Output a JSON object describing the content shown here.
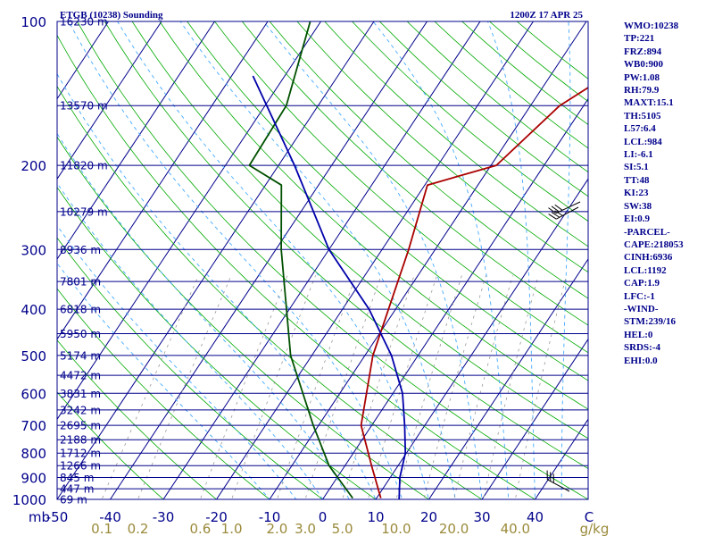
{
  "chart_data": {
    "type": "skew-t-log-p",
    "title": "ETGB (10238) Sounding",
    "time": "1200Z 17 APR 25",
    "pressure_range": [
      100,
      1000
    ],
    "skew_x_range": [
      -50,
      50
    ],
    "y_tick_labels": [
      "100",
      "200",
      "300",
      "400",
      "500",
      "600",
      "700",
      "800",
      "900",
      "1000"
    ],
    "x_tick_labels": [
      "mb",
      "-50",
      "-40",
      "-30",
      "-20",
      "-10",
      "0",
      "10",
      "20",
      "30",
      "40",
      "C"
    ],
    "x_tick_values": [
      -50,
      -40,
      -30,
      -20,
      -10,
      0,
      10,
      20,
      30,
      40
    ],
    "mixing_ratio_labels": [
      "0.1",
      "0.2",
      "0.6",
      "1.0",
      "2.0",
      "3.0",
      "5.0",
      "10.0",
      "20.0",
      "40.0",
      "g/kg"
    ],
    "mixing_ratio_values": [
      0.1,
      0.2,
      0.6,
      1.0,
      2.0,
      3.0,
      5.0,
      10.0,
      20.0,
      40.0
    ],
    "height_levels": [
      {
        "p": 100,
        "label": "16230 m"
      },
      {
        "p": 150,
        "label": "13570 m"
      },
      {
        "p": 200,
        "label": "11820 m"
      },
      {
        "p": 250,
        "label": "10279 m"
      },
      {
        "p": 300,
        "label": "8936 m"
      },
      {
        "p": 350,
        "label": "7801 m"
      },
      {
        "p": 400,
        "label": "6818 m"
      },
      {
        "p": 450,
        "label": "5950 m"
      },
      {
        "p": 500,
        "label": "5174 m"
      },
      {
        "p": 550,
        "label": "4472 m"
      },
      {
        "p": 600,
        "label": "3831 m"
      },
      {
        "p": 650,
        "label": "3242 m"
      },
      {
        "p": 700,
        "label": "2695 m"
      },
      {
        "p": 750,
        "label": "2188 m"
      },
      {
        "p": 800,
        "label": "1712 m"
      },
      {
        "p": 850,
        "label": "1266 m"
      },
      {
        "p": 900,
        "label": "845 m"
      },
      {
        "p": 950,
        "label": "447 m"
      },
      {
        "p": 1000,
        "label": "69 m"
      }
    ],
    "series": [
      {
        "key": "temperature",
        "color": "#aa0000",
        "points": [
          [
            994,
            10.8
          ],
          [
            850,
            5
          ],
          [
            700,
            -2
          ],
          [
            500,
            -8.5
          ],
          [
            300,
            -15
          ],
          [
            220,
            -19.5
          ],
          [
            200,
            -9
          ],
          [
            150,
            -4.5
          ],
          [
            100,
            10
          ]
        ]
      },
      {
        "key": "dewpoint",
        "color": "#005000",
        "points": [
          [
            994,
            5.5
          ],
          [
            850,
            -3
          ],
          [
            700,
            -11
          ],
          [
            500,
            -24
          ],
          [
            300,
            -39
          ],
          [
            220,
            -47
          ],
          [
            200,
            -55.5
          ],
          [
            150,
            -56
          ],
          [
            100,
            -62
          ]
        ]
      },
      {
        "key": "parcel",
        "color": "#0000aa",
        "points": [
          [
            1000,
            14.4
          ],
          [
            900,
            11.8
          ],
          [
            800,
            9.8
          ],
          [
            700,
            6.2
          ],
          [
            600,
            1.8
          ],
          [
            500,
            -5
          ],
          [
            400,
            -15
          ],
          [
            300,
            -30
          ],
          [
            200,
            -47
          ],
          [
            130,
            -66
          ]
        ]
      }
    ],
    "indices": [
      "WMO:10238",
      "TP:221",
      "FRZ:894",
      "WB0:900",
      "PW:1.08",
      "RH:79.9",
      "MAXT:15.1",
      "TH:5105",
      "L57:6.4",
      "LCL:984",
      "LI:-6.1",
      "SI:5.1",
      "TT:48",
      "KI:23",
      "SW:38",
      "EI:0.9",
      "-PARCEL-",
      "CAPE:218053",
      "CINH:6936",
      "LCL:1192",
      "CAP:1.9",
      "LFC:-1",
      "-WIND-",
      "STM:239/16",
      "HEL:0",
      "SRDS:-4",
      "EHI:0.0"
    ],
    "colors": {
      "border": "#00008b",
      "isobar": "#00008b",
      "isotherm": "#00008b",
      "dry_adiabat": "#00aa00",
      "moist_adiabat": "#44aaff",
      "mixing_ratio": "#999999",
      "tick_text": "#00008b",
      "mix_text": "#9a8a3a",
      "wind": "#000000"
    }
  }
}
